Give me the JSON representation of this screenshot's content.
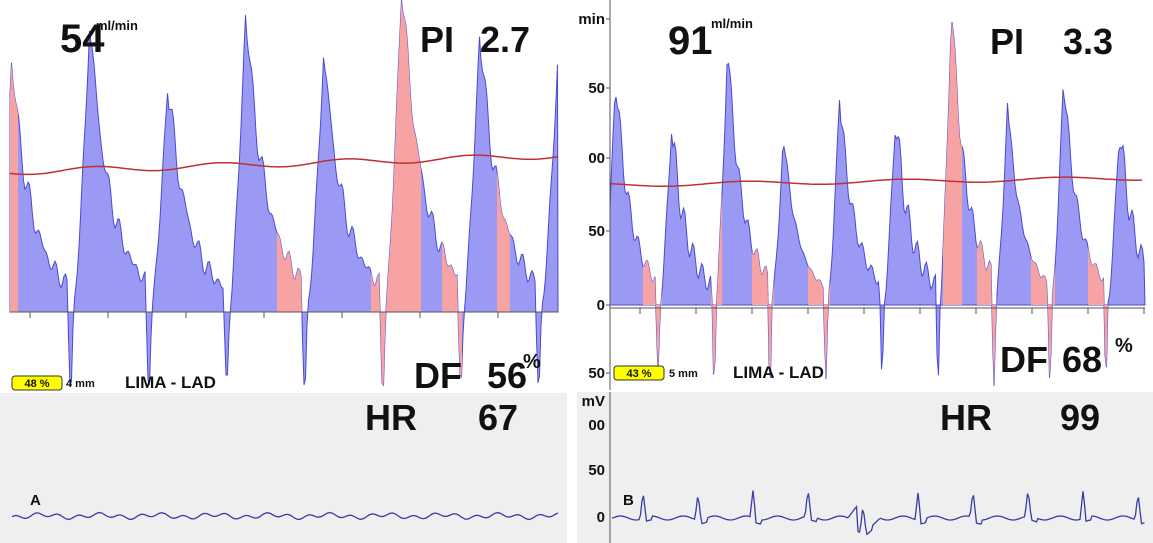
{
  "panels": [
    {
      "label": "A",
      "flow": {
        "value": 54,
        "unit": "ml/min"
      },
      "pi": {
        "label": "PI",
        "value": 2.7
      },
      "df": {
        "label": "DF",
        "value": 56,
        "unit": "%"
      },
      "hr": {
        "label": "HR",
        "value": 67
      },
      "badge": "48 %",
      "probe": "4 mm",
      "vessel": "LIMA - LAD"
    },
    {
      "label": "B",
      "flow": {
        "value": 91,
        "unit": "ml/min"
      },
      "pi": {
        "label": "PI",
        "value": 3.3
      },
      "df": {
        "label": "DF",
        "value": 68,
        "unit": "%"
      },
      "hr": {
        "label": "HR",
        "value": 99
      },
      "badge": "43 %",
      "probe": "5 mm",
      "vessel": "LIMA - LAD",
      "flow_axis": [
        "min",
        "50",
        "00",
        "50",
        "0",
        "50"
      ],
      "ecg_axis": [
        "mV",
        "00",
        "50",
        "0"
      ]
    }
  ]
}
